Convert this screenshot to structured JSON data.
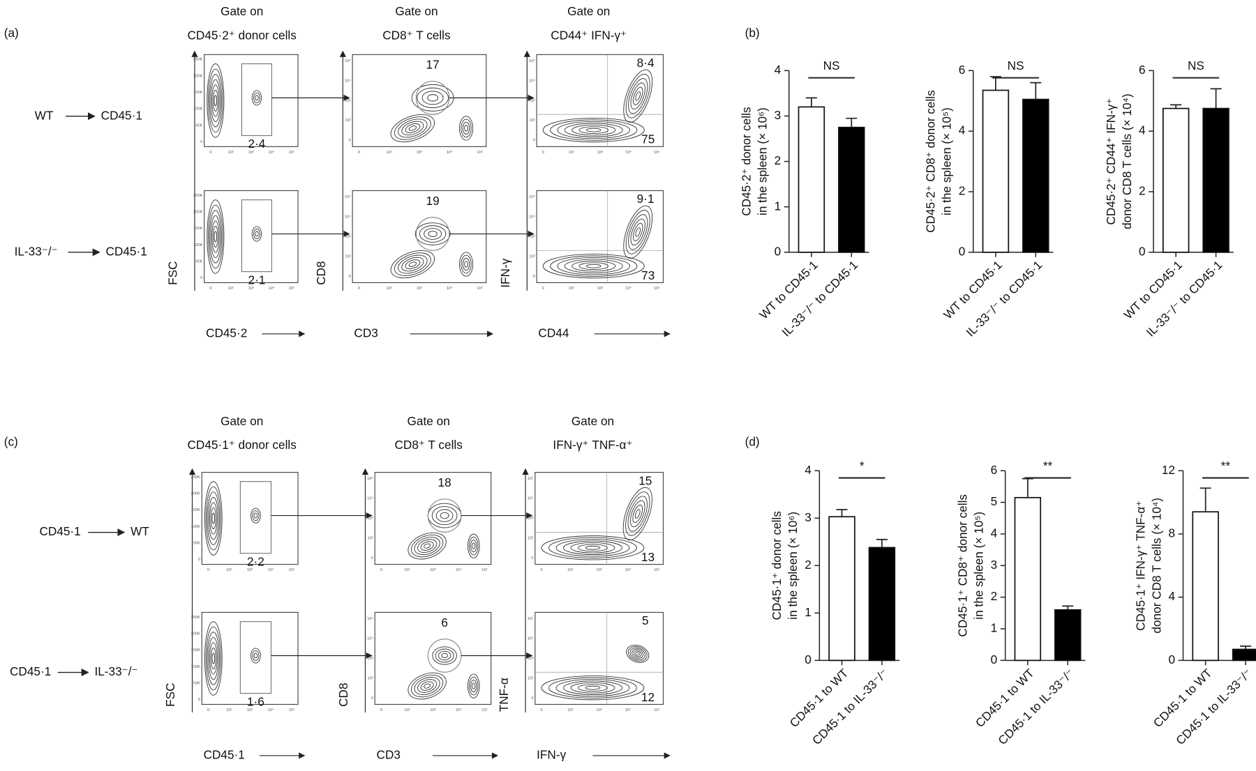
{
  "figure": {
    "panel_labels": [
      "(a)",
      "(b)",
      "(c)",
      "(d)"
    ],
    "a": {
      "gates": [
        [
          "Gate on",
          "CD45·2⁺ donor cells"
        ],
        [
          "Gate on",
          "CD8⁺ T cells"
        ],
        [
          "Gate on",
          "CD44⁺ IFN-γ⁺"
        ]
      ],
      "rows": [
        [
          "WT",
          "CD45·1"
        ],
        [
          "IL-33⁻/⁻",
          "CD45·1"
        ]
      ],
      "axes": [
        [
          "FSC",
          "CD45·2"
        ],
        [
          "CD8",
          "CD3"
        ],
        [
          "IFN-γ",
          "CD44"
        ]
      ],
      "gate_values": [
        [
          "2·4",
          "17",
          "8·4",
          "75"
        ],
        [
          "2·1",
          "19",
          "9·1",
          "73"
        ]
      ]
    },
    "c": {
      "gates": [
        [
          "Gate on",
          "CD45·1⁺ donor cells"
        ],
        [
          "Gate on",
          "CD8⁺ T cells"
        ],
        [
          "Gate on",
          "IFN-γ⁺ TNF-α⁺"
        ]
      ],
      "rows": [
        [
          "CD45·1",
          "WT"
        ],
        [
          "CD45·1",
          "IL-33⁻/⁻"
        ]
      ],
      "axes": [
        [
          "FSC",
          "CD45·1"
        ],
        [
          "CD8",
          "CD3"
        ],
        [
          "TNF-α",
          "IFN-γ"
        ]
      ],
      "gate_values": [
        [
          "2·2",
          "18",
          "15",
          "13"
        ],
        [
          "1·6",
          "6",
          "5",
          "12"
        ]
      ]
    },
    "flow_ticks": {
      "linear": [
        "0",
        "50K",
        "100K",
        "150K",
        "200K",
        "250K"
      ],
      "log": [
        "0",
        "10²",
        "10³",
        "10⁴",
        "10⁵"
      ]
    }
  },
  "chart_data": [
    {
      "type": "bar",
      "ylabel": [
        "CD45·2⁺ donor cells",
        "in the spleen (× 10⁶)"
      ],
      "categories": [
        "WT to CD45·1",
        "IL-33⁻/⁻ to CD45·1"
      ],
      "values": [
        3.2,
        2.75
      ],
      "errors": [
        0.2,
        0.2
      ],
      "colors": [
        "#ffffff",
        "#000000"
      ],
      "ylim": [
        0,
        4
      ],
      "yticks": [
        0,
        1,
        2,
        3,
        4
      ],
      "significance": "NS"
    },
    {
      "type": "bar",
      "ylabel": [
        "CD45·2⁺ CD8⁺ donor cells",
        "in the spleen (× 10⁵)"
      ],
      "categories": [
        "WT to CD45·1",
        "IL-33⁻/⁻ to CD45·1"
      ],
      "values": [
        5.35,
        5.05
      ],
      "errors": [
        0.45,
        0.55
      ],
      "colors": [
        "#ffffff",
        "#000000"
      ],
      "ylim": [
        0,
        6
      ],
      "yticks": [
        0,
        2,
        4,
        6
      ],
      "significance": "NS"
    },
    {
      "type": "bar",
      "ylabel": [
        "CD45·2⁺ CD44⁺ IFN-γ⁺",
        "donor CD8 T cells (× 10⁴)"
      ],
      "categories": [
        "WT to CD45·1",
        "IL-33⁻/⁻ to CD45·1"
      ],
      "values": [
        4.75,
        4.75
      ],
      "errors": [
        0.12,
        0.65
      ],
      "colors": [
        "#ffffff",
        "#000000"
      ],
      "ylim": [
        0,
        6
      ],
      "yticks": [
        0,
        2,
        4,
        6
      ],
      "significance": "NS"
    },
    {
      "type": "bar",
      "ylabel": [
        "CD45·1⁺ donor cells",
        "in the spleen (× 10⁶)"
      ],
      "categories": [
        "CD45·1 to WT",
        "CD45·1 to IL-33⁻/⁻"
      ],
      "values": [
        3.03,
        2.38
      ],
      "errors": [
        0.15,
        0.17
      ],
      "colors": [
        "#ffffff",
        "#000000"
      ],
      "ylim": [
        0,
        4
      ],
      "yticks": [
        0,
        1,
        2,
        3,
        4
      ],
      "significance": "*"
    },
    {
      "type": "bar",
      "ylabel": [
        "CD45·1⁺ CD8⁺ donor cells",
        "in the spleen (× 10⁵)"
      ],
      "categories": [
        "CD45·1 to WT",
        "CD45·1 to IL-33⁻/⁻"
      ],
      "values": [
        5.15,
        1.6
      ],
      "errors": [
        0.6,
        0.12
      ],
      "colors": [
        "#ffffff",
        "#000000"
      ],
      "ylim": [
        0,
        6
      ],
      "yticks": [
        0,
        1,
        2,
        3,
        4,
        5,
        6
      ],
      "significance": "**"
    },
    {
      "type": "bar",
      "ylabel": [
        "CD45·1⁺ IFN-γ⁺ TNF-α⁺",
        "donor CD8 T cells (× 10⁴)"
      ],
      "categories": [
        "CD45·1 to WT",
        "CD45·1 to IL-33⁻/⁻"
      ],
      "values": [
        9.4,
        0.7
      ],
      "errors": [
        1.5,
        0.2
      ],
      "colors": [
        "#ffffff",
        "#000000"
      ],
      "ylim": [
        0,
        12
      ],
      "yticks": [
        0,
        4,
        8,
        12
      ],
      "significance": "**"
    }
  ]
}
